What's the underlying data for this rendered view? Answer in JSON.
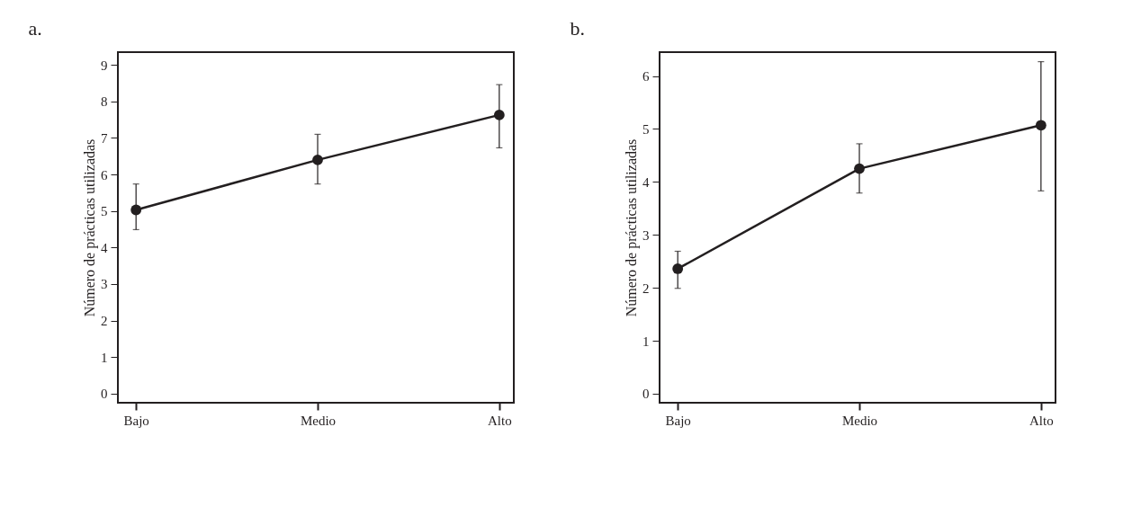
{
  "chart_data": [
    {
      "type": "line",
      "title": "a.",
      "ylabel": "Número de prácticas utilizadas",
      "categories": [
        "Bajo",
        "Medio",
        "Alto"
      ],
      "series": [
        {
          "color": "#231f20",
          "values": [
            5.03,
            6.4,
            7.63
          ],
          "errors": [
            [
              4.49,
              5.74
            ],
            [
              5.74,
              7.1
            ],
            [
              6.73,
              8.46
            ]
          ]
        }
      ],
      "ylim": [
        -0.25,
        9.35
      ],
      "yticks": [
        0,
        1,
        2,
        3,
        4,
        5,
        6,
        7,
        8,
        9
      ],
      "grid": false,
      "marker": "circle",
      "line_style": "solid"
    },
    {
      "type": "line",
      "title": "b.",
      "ylabel": "Número de prácticas utilizadas",
      "categories": [
        "Bajo",
        "Medio",
        "Alto"
      ],
      "series": [
        {
          "color": "#231f20",
          "values": [
            2.36,
            4.25,
            5.07
          ],
          "errors": [
            [
              1.99,
              2.69
            ],
            [
              3.79,
              4.72
            ],
            [
              3.83,
              6.27
            ]
          ]
        }
      ],
      "ylim": [
        -0.17,
        6.45
      ],
      "yticks": [
        0,
        1,
        2,
        3,
        4,
        5,
        6
      ],
      "grid": false,
      "marker": "circle",
      "line_style": "solid"
    }
  ]
}
